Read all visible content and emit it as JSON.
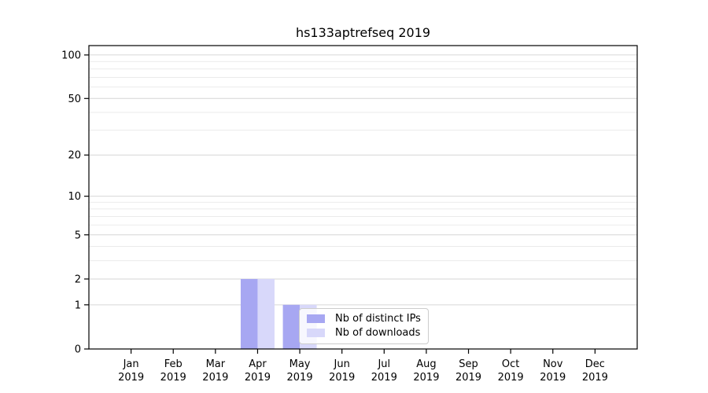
{
  "chart_data": {
    "type": "bar",
    "title": "hs133aptrefseq 2019",
    "categories": [
      "Jan",
      "Feb",
      "Mar",
      "Apr",
      "May",
      "Jun",
      "Jul",
      "Aug",
      "Sep",
      "Oct",
      "Nov",
      "Dec"
    ],
    "x_tick_second_line": "2019",
    "series": [
      {
        "name": "Nb of distinct IPs",
        "color": "#a7a7f2",
        "values": [
          0,
          0,
          0,
          2,
          1,
          0,
          0,
          0,
          0,
          0,
          0,
          0
        ]
      },
      {
        "name": "Nb of downloads",
        "color": "#d8d8fa",
        "values": [
          0,
          0,
          0,
          2,
          1,
          0,
          0,
          0,
          0,
          0,
          0,
          0
        ]
      }
    ],
    "y_scale": "log1p",
    "y_major_ticks": [
      0,
      1,
      2,
      5,
      10,
      20,
      50,
      100
    ],
    "y_minor_ticks": [
      3,
      4,
      6,
      7,
      8,
      9,
      30,
      40,
      60,
      70,
      80,
      90
    ],
    "ylim": [
      0,
      116
    ],
    "grid": true,
    "legend_position": "lower-center-inside",
    "colors": {
      "major_grid": "#d6d6d6",
      "minor_grid": "#ebebeb",
      "axis": "#000000",
      "tick_label": "#000000",
      "background": "#ffffff"
    }
  },
  "legend": {
    "items": [
      {
        "label": "Nb of distinct IPs",
        "color": "#a7a7f2"
      },
      {
        "label": "Nb of downloads",
        "color": "#d8d8fa"
      }
    ]
  }
}
